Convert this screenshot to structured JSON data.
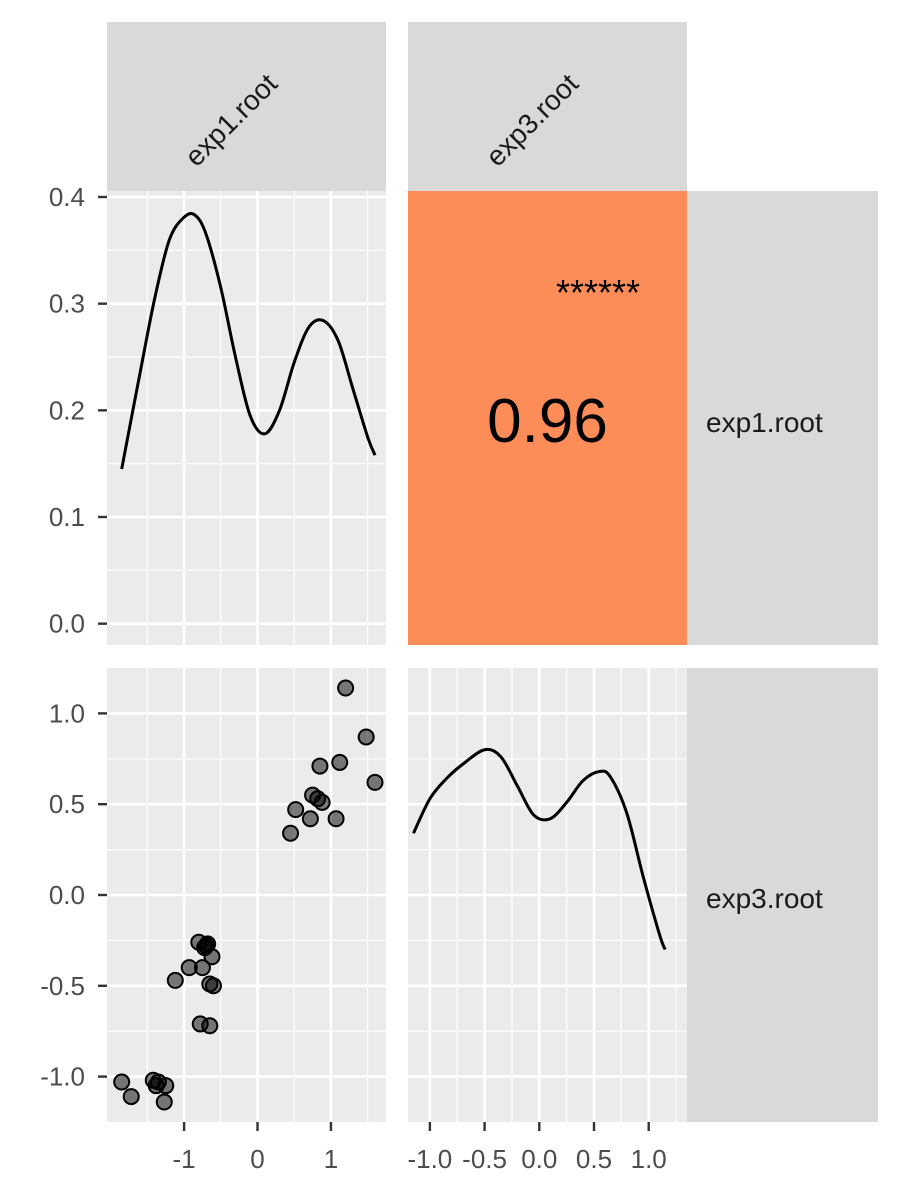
{
  "strips": {
    "columns": [
      "exp1.root",
      "exp3.root"
    ],
    "rows": [
      "exp1.root",
      "exp3.root"
    ]
  },
  "colors": {
    "panel_bg": "#EBEBEB",
    "strip_bg": "#D9D9D9",
    "grid": "#FFFFFF",
    "corr_fill": "#FC8D59",
    "line": "#000000",
    "point": "#000000",
    "tick_text": "#4D4D4D"
  },
  "chart_data": [
    {
      "panel": "exp1.root density",
      "type": "line",
      "x": [
        -1.85,
        -1.6,
        -1.4,
        -1.2,
        -1.0,
        -0.85,
        -0.7,
        -0.5,
        -0.3,
        -0.1,
        0.1,
        0.3,
        0.5,
        0.7,
        0.9,
        1.1,
        1.3,
        1.5,
        1.6
      ],
      "y": [
        0.145,
        0.235,
        0.305,
        0.36,
        0.381,
        0.383,
        0.365,
        0.315,
        0.25,
        0.195,
        0.178,
        0.2,
        0.245,
        0.278,
        0.284,
        0.265,
        0.22,
        0.175,
        0.158
      ],
      "xlim": [
        -2.05,
        1.75
      ],
      "ylim": [
        -0.02,
        0.4
      ],
      "yticks": [
        "0.0",
        "0.1",
        "0.2",
        "0.3",
        "0.4"
      ],
      "yticks_values": [
        0,
        0.1,
        0.2,
        0.3,
        0.4
      ],
      "grid": true
    },
    {
      "panel": "correlation exp1.root vs exp3.root",
      "type": "table",
      "value": "0.96",
      "significance": "******"
    },
    {
      "panel": "exp1.root vs exp3.root",
      "type": "scatter",
      "x": [
        -1.85,
        -1.72,
        -1.42,
        -1.38,
        -1.35,
        -1.25,
        -1.27,
        -1.12,
        -0.93,
        -0.8,
        -0.72,
        -0.68,
        -0.62,
        -0.65,
        -0.6,
        -0.78,
        -0.75,
        -0.65,
        -0.7,
        -0.68,
        0.45,
        0.52,
        0.72,
        0.75,
        0.82,
        0.88,
        0.85,
        1.07,
        1.12,
        1.2,
        1.48,
        1.6
      ],
      "y": [
        -1.03,
        -1.11,
        -1.02,
        -1.05,
        -1.03,
        -1.05,
        -1.14,
        -0.47,
        -0.4,
        -0.26,
        -0.29,
        -0.27,
        -0.34,
        -0.49,
        -0.5,
        -0.71,
        -0.4,
        -0.72,
        -0.28,
        -0.27,
        0.34,
        0.47,
        0.42,
        0.55,
        0.53,
        0.51,
        0.71,
        0.42,
        0.73,
        1.14,
        0.87,
        0.62
      ],
      "xlim": [
        -2.05,
        1.75
      ],
      "ylim": [
        -1.25,
        1.25
      ],
      "xticks": [
        "-1",
        "0",
        "1"
      ],
      "xticks_values": [
        -1,
        0,
        1
      ],
      "yticks": [
        "-1.0",
        "-0.5",
        "0.0",
        "0.5",
        "1.0"
      ],
      "yticks_values": [
        -1.0,
        -0.5,
        0.0,
        0.5,
        1.0
      ],
      "grid": true
    },
    {
      "panel": "exp3.root density",
      "type": "line",
      "x": [
        -1.15,
        -1.0,
        -0.85,
        -0.7,
        -0.5,
        -0.35,
        -0.2,
        -0.05,
        0.1,
        0.25,
        0.4,
        0.55,
        0.65,
        0.8,
        0.95,
        1.1,
        1.15
      ],
      "y": [
        0.34,
        0.53,
        0.64,
        0.72,
        0.8,
        0.76,
        0.6,
        0.44,
        0.42,
        0.51,
        0.63,
        0.68,
        0.65,
        0.45,
        0.1,
        -0.22,
        -0.3
      ],
      "xlim": [
        -1.2,
        1.35
      ],
      "xticks": [
        "-1.0",
        "-0.5",
        "0.0",
        "0.5",
        "1.0"
      ],
      "xticks_values": [
        -1.0,
        -0.5,
        0.0,
        0.5,
        1.0
      ],
      "grid": true
    }
  ]
}
